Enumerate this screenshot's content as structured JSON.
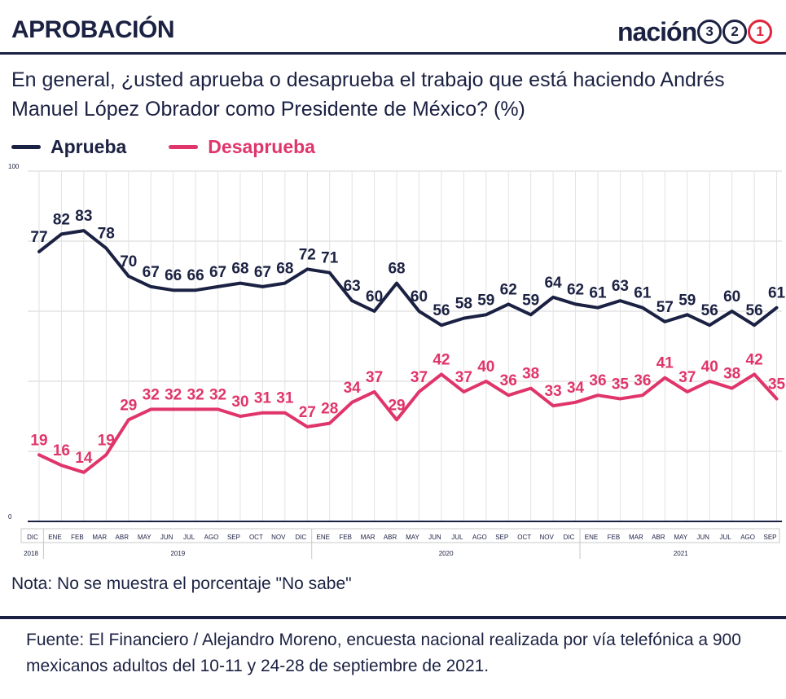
{
  "header": {
    "title": "APROBACIÓN",
    "logo_word": "nación",
    "logo_digits": [
      "3",
      "2",
      "1"
    ]
  },
  "question": "En general, ¿usted aprueba o desaprueba el trabajo que está haciendo Andrés Manuel López Obrador como Presidente de México?  (%)",
  "note": "Nota: No se muestra el porcentaje \"No sabe\"",
  "source": "Fuente: El Financiero / Alejandro Moreno, encuesta nacional realizada por vía telefónica a 900 mexicanos adultos del 10-11 y 24-28 de septiembre de 2021.",
  "colors": {
    "navy": "#1b2142",
    "pink": "#e0356a",
    "logo_red": "#e0243a"
  },
  "chart_data": {
    "type": "line",
    "title": "",
    "xlabel": "",
    "ylabel": "",
    "ylim": [
      0,
      100
    ],
    "yticks": [
      0,
      100
    ],
    "grid": "horizontal and vertical",
    "legend": "top-left",
    "categories": [
      "DIC",
      "ENE",
      "FEB",
      "MAR",
      "ABR",
      "MAY",
      "JUN",
      "JUL",
      "AGO",
      "SEP",
      "OCT",
      "NOV",
      "DIC",
      "ENE",
      "FEB",
      "MAR",
      "ABR",
      "MAY",
      "JUN",
      "JUL",
      "AGO",
      "SEP",
      "OCT",
      "NOV",
      "DIC",
      "ENE",
      "FEB",
      "MAR",
      "ABR",
      "MAY",
      "JUN",
      "JUL",
      "AGO",
      "SEP"
    ],
    "years": [
      {
        "label": "2018",
        "from": 0,
        "to": 0
      },
      {
        "label": "2019",
        "from": 1,
        "to": 12
      },
      {
        "label": "2020",
        "from": 13,
        "to": 24
      },
      {
        "label": "2021",
        "from": 25,
        "to": 33
      }
    ],
    "series": [
      {
        "name": "Aprueba",
        "color": "#1b2142",
        "values": [
          77,
          82,
          83,
          78,
          70,
          67,
          66,
          66,
          67,
          68,
          67,
          68,
          72,
          71,
          63,
          60,
          68,
          60,
          56,
          58,
          59,
          62,
          59,
          64,
          62,
          61,
          63,
          61,
          57,
          59,
          56,
          60,
          56,
          61
        ]
      },
      {
        "name": "Desaprueba",
        "color": "#e0356a",
        "values": [
          19,
          16,
          14,
          19,
          29,
          32,
          32,
          32,
          32,
          30,
          31,
          31,
          27,
          28,
          34,
          37,
          29,
          37,
          42,
          37,
          40,
          36,
          38,
          33,
          34,
          36,
          35,
          36,
          41,
          37,
          40,
          38,
          42,
          35
        ]
      }
    ]
  }
}
